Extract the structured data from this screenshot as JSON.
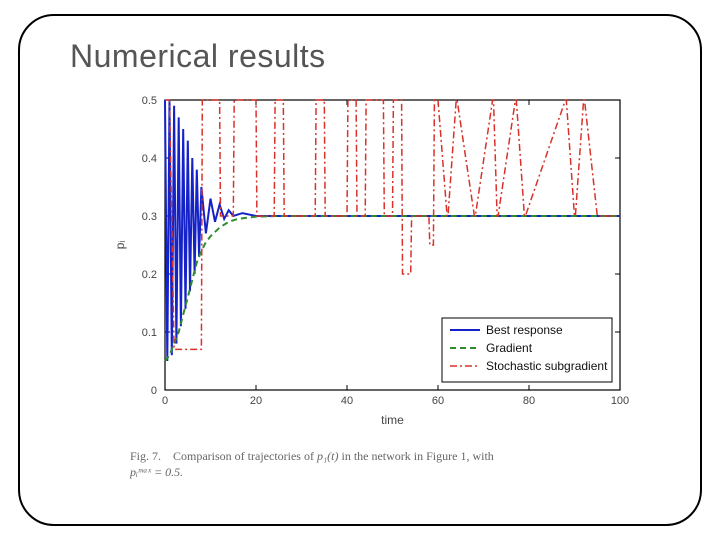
{
  "slide": {
    "title": "Numerical results"
  },
  "chart": {
    "type": "line",
    "background_color": "#ffffff",
    "axis_color": "#000000",
    "tick_label_color": "#444444",
    "tick_fontsize": 11,
    "label_fontsize": 12,
    "xlabel": "time",
    "ylabel": "pᵢ",
    "xlim": [
      0,
      100
    ],
    "ylim": [
      0,
      0.5
    ],
    "xticks": [
      0,
      20,
      40,
      60,
      80,
      100
    ],
    "yticks": [
      0,
      0.1,
      0.2,
      0.3,
      0.4,
      0.5
    ],
    "legend": {
      "position": "lower-right",
      "border_color": "#000000",
      "background": "#ffffff",
      "fontsize": 12,
      "items": [
        0,
        1,
        2
      ]
    },
    "series": [
      {
        "name": "Best response",
        "color": "#1522c8",
        "line_width": 2,
        "dash": "solid",
        "x": [
          0,
          0.5,
          1,
          1.5,
          2,
          2.5,
          3,
          3.5,
          4,
          4.5,
          5,
          5.5,
          6,
          6.5,
          7,
          7.5,
          8,
          9,
          10,
          11,
          12,
          13,
          14,
          15,
          17,
          20,
          25,
          30,
          40,
          60,
          100
        ],
        "y": [
          0.5,
          0.05,
          0.5,
          0.06,
          0.49,
          0.08,
          0.47,
          0.11,
          0.45,
          0.14,
          0.43,
          0.17,
          0.4,
          0.2,
          0.38,
          0.23,
          0.35,
          0.27,
          0.33,
          0.29,
          0.32,
          0.295,
          0.31,
          0.3,
          0.305,
          0.3,
          0.3,
          0.3,
          0.3,
          0.3,
          0.3
        ]
      },
      {
        "name": "Gradient",
        "color": "#2e8b2e",
        "line_width": 2,
        "dash": "6,4",
        "x": [
          0,
          1,
          2,
          3,
          4,
          5,
          6,
          7,
          8,
          9,
          10,
          12,
          14,
          16,
          18,
          20,
          25,
          30,
          40,
          60,
          100
        ],
        "y": [
          0.05,
          0.06,
          0.08,
          0.1,
          0.13,
          0.16,
          0.19,
          0.22,
          0.24,
          0.255,
          0.265,
          0.28,
          0.29,
          0.295,
          0.297,
          0.299,
          0.3,
          0.3,
          0.3,
          0.3,
          0.3
        ]
      },
      {
        "name": "Stochastic subgradient",
        "color": "#d8322a",
        "line_width": 1.5,
        "dash": "7,3,2,3",
        "x": [
          0,
          1,
          2,
          3,
          4,
          5,
          6,
          8,
          8.2,
          12,
          12.2,
          15,
          15.2,
          20,
          20.2,
          24,
          24.2,
          26,
          26.2,
          33,
          33.2,
          35,
          35.2,
          40,
          40.2,
          42,
          42.2,
          44,
          44.2,
          48,
          48.2,
          50,
          50.2,
          52,
          52.2,
          54,
          54.2,
          58,
          58.2,
          59,
          59.2,
          60,
          62,
          62.2,
          64,
          64.2,
          68,
          68.2,
          72,
          72.2,
          73,
          73.2,
          77,
          77.2,
          79,
          79.2,
          88,
          88.2,
          90,
          90.2,
          92,
          92.2,
          95,
          100
        ],
        "y": [
          0.5,
          0.5,
          0.07,
          0.07,
          0.07,
          0.07,
          0.07,
          0.07,
          0.5,
          0.5,
          0.3,
          0.3,
          0.5,
          0.5,
          0.3,
          0.3,
          0.5,
          0.5,
          0.3,
          0.3,
          0.5,
          0.5,
          0.3,
          0.3,
          0.5,
          0.5,
          0.3,
          0.3,
          0.5,
          0.5,
          0.3,
          0.3,
          0.5,
          0.5,
          0.2,
          0.2,
          0.3,
          0.3,
          0.25,
          0.25,
          0.5,
          0.5,
          0.3,
          0.3,
          0.5,
          0.5,
          0.3,
          0.3,
          0.5,
          0.5,
          0.3,
          0.3,
          0.5,
          0.5,
          0.3,
          0.3,
          0.5,
          0.5,
          0.3,
          0.3,
          0.5,
          0.5,
          0.3,
          0.3
        ]
      }
    ]
  },
  "caption": {
    "label": "Fig. 7.",
    "text_before": "Comparison of trajectories of ",
    "func": "p₁(t)",
    "text_mid": " in the network in Figure 1, with ",
    "pmax": "pᵢᵐᵃˣ = 0.5."
  }
}
